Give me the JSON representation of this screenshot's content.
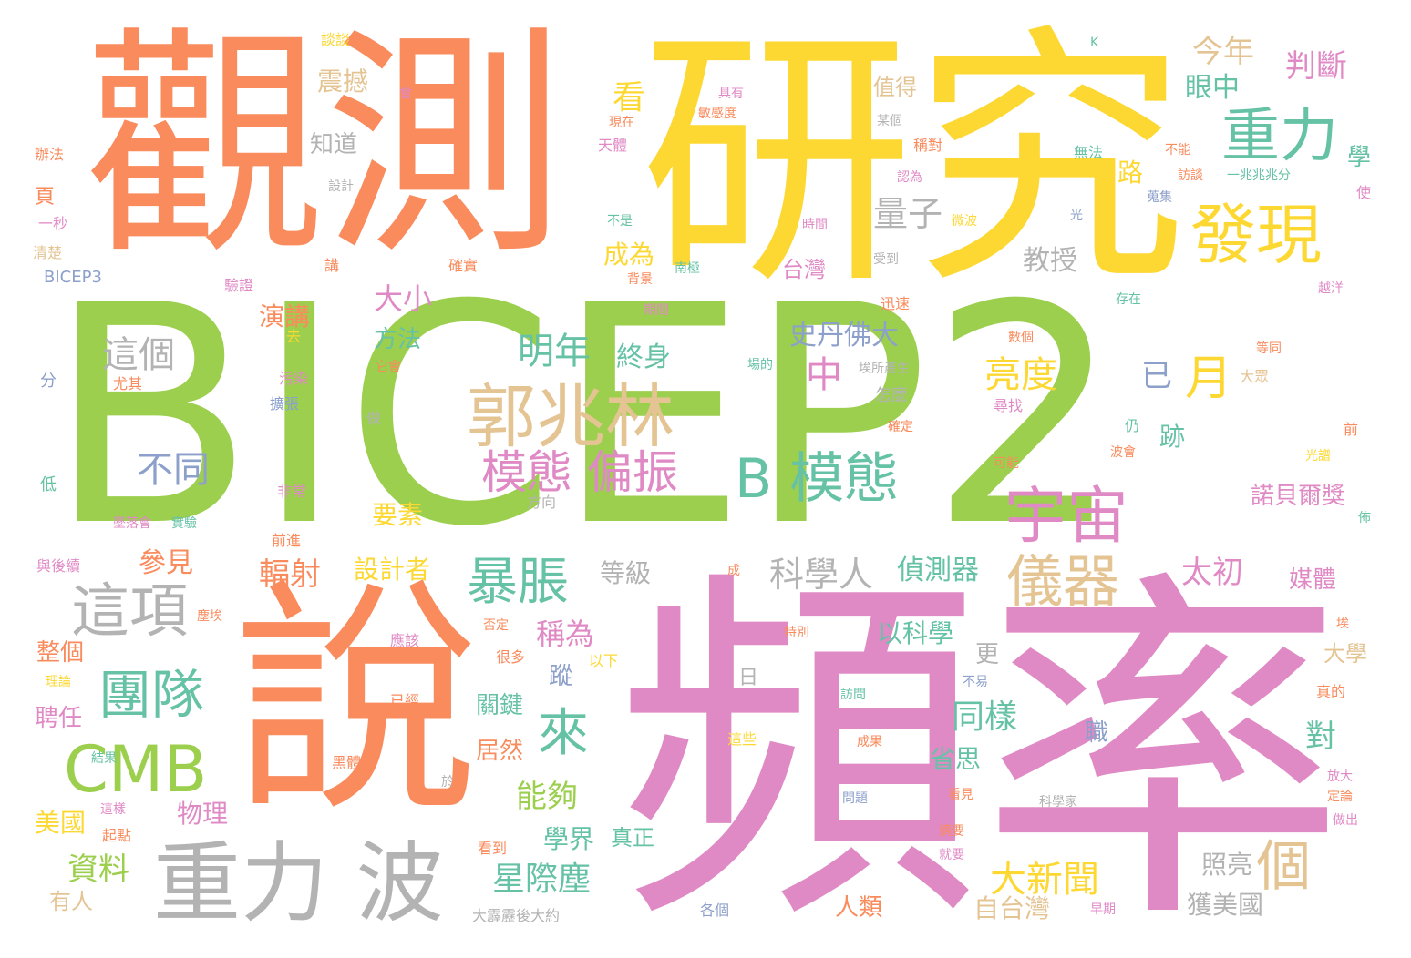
{
  "colors": {
    "green": "#9ccf4e",
    "orange": "#f98b5d",
    "yellow": "#fdd833",
    "pink": "#e08ac5",
    "gray": "#b3b3b3",
    "teal": "#66c2a5",
    "tan": "#e5c494",
    "blue": "#8da0cb"
  },
  "words": [
    {
      "text": "BICEP2",
      "color": "green"
    },
    {
      "text": "觀測",
      "color": "orange"
    },
    {
      "text": "研究",
      "color": "yellow"
    },
    {
      "text": "頻率",
      "color": "pink"
    },
    {
      "text": "說",
      "color": "orange"
    },
    {
      "text": "郭兆林",
      "color": "tan"
    },
    {
      "text": "重力 波",
      "color": "gray"
    },
    {
      "text": "發現",
      "color": "yellow"
    },
    {
      "text": "重力",
      "color": "teal"
    },
    {
      "text": "宇宙",
      "color": "pink"
    },
    {
      "text": "B 模態",
      "color": "teal"
    },
    {
      "text": "CMB",
      "color": "green"
    },
    {
      "text": "儀器",
      "color": "tan"
    },
    {
      "text": "團隊",
      "color": "teal"
    },
    {
      "text": "這項",
      "color": "gray"
    },
    {
      "text": "暴脹",
      "color": "teal"
    },
    {
      "text": "模態 偏振",
      "color": "pink"
    },
    {
      "text": "來",
      "color": "teal"
    },
    {
      "text": "月",
      "color": "yellow"
    },
    {
      "text": "亮度",
      "color": "yellow"
    },
    {
      "text": "個",
      "color": "tan"
    },
    {
      "text": "這個",
      "color": "gray"
    },
    {
      "text": "明年",
      "color": "teal"
    },
    {
      "text": "不同",
      "color": "blue"
    },
    {
      "text": "大新聞",
      "color": "yellow"
    },
    {
      "text": "科學人",
      "color": "gray"
    },
    {
      "text": "量子",
      "color": "gray"
    },
    {
      "text": "判斷",
      "color": "pink"
    },
    {
      "text": "今年",
      "color": "tan"
    },
    {
      "text": "中",
      "color": "pink"
    },
    {
      "text": "已",
      "color": "blue"
    },
    {
      "text": "星際塵",
      "color": "teal"
    },
    {
      "text": "太初",
      "color": "pink"
    },
    {
      "text": "同樣",
      "color": "teal"
    },
    {
      "text": "輻射",
      "color": "orange"
    },
    {
      "text": "大小",
      "color": "pink"
    },
    {
      "text": "看",
      "color": "yellow"
    },
    {
      "text": "教授",
      "color": "gray"
    },
    {
      "text": "終身",
      "color": "teal"
    },
    {
      "text": "偵測器",
      "color": "teal"
    },
    {
      "text": "史丹佛大",
      "color": "blue"
    },
    {
      "text": "資料",
      "color": "green"
    },
    {
      "text": "能夠",
      "color": "green"
    },
    {
      "text": "稱為",
      "color": "pink"
    },
    {
      "text": "設計者",
      "color": "yellow"
    },
    {
      "text": "照亮",
      "color": "gray"
    },
    {
      "text": "成為",
      "color": "yellow"
    },
    {
      "text": "眼中",
      "color": "teal"
    },
    {
      "text": "路",
      "color": "yellow"
    },
    {
      "text": "學",
      "color": "teal"
    },
    {
      "text": "對",
      "color": "teal"
    },
    {
      "text": "物理",
      "color": "pink"
    },
    {
      "text": "媒體",
      "color": "pink"
    },
    {
      "text": "諾貝爾獎",
      "color": "pink"
    },
    {
      "text": "學界",
      "color": "teal"
    },
    {
      "text": "知道",
      "color": "gray"
    },
    {
      "text": "震撼",
      "color": "tan"
    },
    {
      "text": "演講",
      "color": "orange"
    },
    {
      "text": "方法",
      "color": "teal"
    },
    {
      "text": "參見",
      "color": "orange"
    },
    {
      "text": "整個",
      "color": "orange"
    },
    {
      "text": "聘任",
      "color": "pink"
    },
    {
      "text": "美國",
      "color": "yellow"
    },
    {
      "text": "關鍵",
      "color": "teal"
    },
    {
      "text": "居然",
      "color": "orange"
    },
    {
      "text": "要素",
      "color": "yellow"
    },
    {
      "text": "台灣",
      "color": "pink"
    },
    {
      "text": "值得",
      "color": "tan"
    },
    {
      "text": "獲美國",
      "color": "gray"
    },
    {
      "text": "自台灣",
      "color": "tan"
    },
    {
      "text": "人類",
      "color": "orange"
    },
    {
      "text": "真正",
      "color": "teal"
    },
    {
      "text": "有人",
      "color": "tan"
    },
    {
      "text": "等級",
      "color": "gray"
    },
    {
      "text": "以科學",
      "color": "teal"
    },
    {
      "text": "省思",
      "color": "teal"
    },
    {
      "text": "大學",
      "color": "tan"
    },
    {
      "text": "跡",
      "color": "teal"
    },
    {
      "text": "職",
      "color": "blue"
    },
    {
      "text": "蹤",
      "color": "blue"
    },
    {
      "text": "更",
      "color": "gray"
    },
    {
      "text": "日",
      "color": "gray"
    },
    {
      "text": "頁",
      "color": "orange"
    },
    {
      "text": "BICEP3",
      "color": "blue"
    },
    {
      "text": "辦法",
      "color": "orange"
    },
    {
      "text": "一秒",
      "color": "pink"
    },
    {
      "text": "清楚",
      "color": "tan"
    },
    {
      "text": "分",
      "color": "blue"
    },
    {
      "text": "低",
      "color": "teal"
    },
    {
      "text": "尤其",
      "color": "orange"
    },
    {
      "text": "擴張",
      "color": "blue"
    },
    {
      "text": "污染",
      "color": "pink"
    },
    {
      "text": "去",
      "color": "yellow"
    },
    {
      "text": "談談",
      "color": "yellow"
    },
    {
      "text": "設計",
      "color": "gray"
    },
    {
      "text": "驗證",
      "color": "pink"
    },
    {
      "text": "講",
      "color": "orange"
    },
    {
      "text": "做",
      "color": "gray"
    },
    {
      "text": "非常",
      "color": "pink"
    },
    {
      "text": "前進",
      "color": "orange"
    },
    {
      "text": "與後續",
      "color": "pink"
    },
    {
      "text": "塵埃",
      "color": "orange"
    },
    {
      "text": "理論",
      "color": "yellow"
    },
    {
      "text": "結果",
      "color": "teal"
    },
    {
      "text": "這樣",
      "color": "pink"
    },
    {
      "text": "起點",
      "color": "orange"
    },
    {
      "text": "黑體",
      "color": "orange"
    },
    {
      "text": "應該",
      "color": "pink"
    },
    {
      "text": "已經",
      "color": "orange"
    },
    {
      "text": "於",
      "color": "gray"
    },
    {
      "text": "看到",
      "color": "orange"
    },
    {
      "text": "大霹靂後大約",
      "color": "gray"
    },
    {
      "text": "很多",
      "color": "orange"
    },
    {
      "text": "否定",
      "color": "orange"
    },
    {
      "text": "以下",
      "color": "yellow"
    },
    {
      "text": "墜落會",
      "color": "pink"
    },
    {
      "text": "實驗",
      "color": "teal"
    },
    {
      "text": "方向",
      "color": "gray"
    },
    {
      "text": "會",
      "color": "pink"
    },
    {
      "text": "具有",
      "color": "pink"
    },
    {
      "text": "現在",
      "color": "orange"
    },
    {
      "text": "天體",
      "color": "pink"
    },
    {
      "text": "敏感度",
      "color": "orange"
    },
    {
      "text": "不是",
      "color": "teal"
    },
    {
      "text": "背景",
      "color": "orange"
    },
    {
      "text": "確實",
      "color": "orange"
    },
    {
      "text": "南極",
      "color": "teal"
    },
    {
      "text": "期間",
      "color": "pink"
    },
    {
      "text": "它會",
      "color": "orange"
    },
    {
      "text": "K",
      "color": "teal"
    },
    {
      "text": "某個",
      "color": "gray"
    },
    {
      "text": "稱對",
      "color": "orange"
    },
    {
      "text": "認為",
      "color": "pink"
    },
    {
      "text": "時間",
      "color": "pink"
    },
    {
      "text": "微波",
      "color": "yellow"
    },
    {
      "text": "受到",
      "color": "gray"
    },
    {
      "text": "迅速",
      "color": "orange"
    },
    {
      "text": "埃所產生",
      "color": "gray"
    },
    {
      "text": "怎麼",
      "color": "gray"
    },
    {
      "text": "場的",
      "color": "teal"
    },
    {
      "text": "確定",
      "color": "orange"
    },
    {
      "text": "無法",
      "color": "teal"
    },
    {
      "text": "不能",
      "color": "orange"
    },
    {
      "text": "訪談",
      "color": "orange"
    },
    {
      "text": "一兆兆兆分",
      "color": "teal"
    },
    {
      "text": "蒐集",
      "color": "blue"
    },
    {
      "text": "光",
      "color": "blue"
    },
    {
      "text": "使",
      "color": "pink"
    },
    {
      "text": "存在",
      "color": "teal"
    },
    {
      "text": "越洋",
      "color": "pink"
    },
    {
      "text": "數個",
      "color": "orange"
    },
    {
      "text": "尋找",
      "color": "pink"
    },
    {
      "text": "可能",
      "color": "orange"
    },
    {
      "text": "仍",
      "color": "teal"
    },
    {
      "text": "波會",
      "color": "orange"
    },
    {
      "text": "光譜",
      "color": "yellow"
    },
    {
      "text": "等同",
      "color": "orange"
    },
    {
      "text": "大眾",
      "color": "tan"
    },
    {
      "text": "前",
      "color": "orange"
    },
    {
      "text": "佈",
      "color": "teal"
    },
    {
      "text": "成",
      "color": "orange"
    },
    {
      "text": "埃",
      "color": "orange"
    },
    {
      "text": "特別",
      "color": "orange"
    },
    {
      "text": "訪問",
      "color": "teal"
    },
    {
      "text": "不易",
      "color": "blue"
    },
    {
      "text": "這些",
      "color": "yellow"
    },
    {
      "text": "成果",
      "color": "orange"
    },
    {
      "text": "問題",
      "color": "blue"
    },
    {
      "text": "看見",
      "color": "orange"
    },
    {
      "text": "科學家",
      "color": "gray"
    },
    {
      "text": "摘要",
      "color": "orange"
    },
    {
      "text": "就要",
      "color": "pink"
    },
    {
      "text": "各個",
      "color": "blue"
    },
    {
      "text": "早期",
      "color": "pink"
    },
    {
      "text": "真的",
      "color": "orange"
    },
    {
      "text": "放大",
      "color": "pink"
    },
    {
      "text": "定論",
      "color": "orange"
    },
    {
      "text": "做出",
      "color": "pink"
    }
  ]
}
